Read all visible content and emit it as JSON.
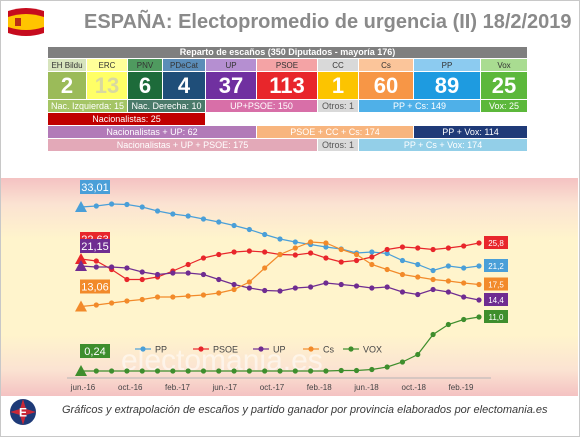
{
  "header": {
    "title": "ESPAÑA: Electopromedio de urgencia (II) 18/2/2019"
  },
  "seat_table": {
    "header": "Reparto de escaños (350 Diputados - mayoría 176)",
    "parties": [
      {
        "name": "EH Bildu",
        "seats": "2",
        "bg": "#9bbb59",
        "name_bg": "#d7e4bd",
        "seat_color": "#ffffff"
      },
      {
        "name": "ERC",
        "seats": "13",
        "bg": "#ffff66",
        "name_bg": "#ffff99",
        "seat_color": "#d9d9a0"
      },
      {
        "name": "PNV",
        "seats": "6",
        "bg": "#1d6b3a",
        "name_bg": "#4f9a5f",
        "seat_color": "#ffffff"
      },
      {
        "name": "PDeCat",
        "seats": "4",
        "bg": "#1f4e79",
        "name_bg": "#5b8db8",
        "seat_color": "#ffffff"
      },
      {
        "name": "UP",
        "seats": "37",
        "bg": "#7030a0",
        "name_bg": "#b58fd1",
        "seat_color": "#ffffff"
      },
      {
        "name": "PSOE",
        "seats": "113",
        "bg": "#e8262b",
        "name_bg": "#f4a3a5",
        "seat_color": "#ffffff"
      },
      {
        "name": "CC",
        "seats": "1",
        "bg": "#fcc400",
        "name_bg": "#d9d9d9",
        "seat_color": "#ffffff"
      },
      {
        "name": "Cs",
        "seats": "60",
        "bg": "#f79646",
        "name_bg": "#fbc59a",
        "seat_color": "#ffffff"
      },
      {
        "name": "PP",
        "seats": "89",
        "bg": "#1e9be0",
        "name_bg": "#8ccbf0",
        "seat_color": "#ffffff"
      },
      {
        "name": "Vox",
        "seats": "25",
        "bg": "#5cb83b",
        "name_bg": "#a9dc91",
        "seat_color": "#ffffff"
      }
    ],
    "blocs": {
      "nac_izquierda": "Nac. Izquierda: 15",
      "nac_derecha": "Nac. Derecha: 10",
      "up_psoe": "UP+PSOE: 150",
      "otros_1": "Otros: 1",
      "pp_cs": "PP + Cs: 149",
      "vox": "Vox: 25",
      "nacionalistas": "Nacionalistas: 25",
      "nac_up": "Nacionalistas + UP: 62",
      "psoe_cc_cs": "PSOE + CC + Cs: 174",
      "pp_vox": "PP + Vox: 114",
      "nac_up_psoe": "Nacionalistas + UP + PSOE: 175",
      "otros_2": "Otros: 1",
      "pp_cs_vox": "PP + Cs + Vox: 174"
    }
  },
  "chart_data": {
    "type": "line",
    "x_tick_labels": [
      "jun.-16",
      "oct.-16",
      "feb.-17",
      "jun.-17",
      "oct.-17",
      "feb.-18",
      "jun.-18",
      "oct.-18",
      "feb.-19"
    ],
    "ylim": [
      0,
      36
    ],
    "series": [
      {
        "name": "PP",
        "color": "#4a9fd8",
        "start_label": "33,01",
        "end_label": "21,2",
        "values": [
          33.0,
          33.2,
          33.6,
          33.5,
          33.0,
          32.2,
          31.6,
          31.2,
          30.6,
          30.0,
          29.3,
          28.5,
          27.5,
          26.6,
          26.0,
          25.5,
          25.0,
          24.6,
          23.8,
          24.0,
          23.7,
          22.3,
          21.5,
          20.3,
          21.2,
          20.8,
          21.2
        ]
      },
      {
        "name": "PSOE",
        "color": "#e8262b",
        "start_label": "22,63",
        "end_label": "25,8",
        "values": [
          22.6,
          22.2,
          20.5,
          18.5,
          18.5,
          19.0,
          20.2,
          21.5,
          22.8,
          23.5,
          24.0,
          24.2,
          24.0,
          23.5,
          23.4,
          23.8,
          22.8,
          22.0,
          22.3,
          23.0,
          24.5,
          25.0,
          24.8,
          24.5,
          24.8,
          25.2,
          25.8
        ]
      },
      {
        "name": "UP",
        "color": "#6f2c91",
        "start_label": "21,15",
        "end_label": "14,4",
        "values": [
          21.2,
          21.0,
          21.0,
          20.8,
          20.0,
          19.5,
          19.8,
          19.8,
          19.5,
          18.5,
          17.5,
          16.8,
          16.3,
          16.2,
          16.8,
          17.0,
          17.8,
          17.5,
          17.2,
          16.8,
          17.0,
          16.0,
          15.5,
          16.5,
          16.0,
          15.0,
          14.4
        ]
      },
      {
        "name": "Cs",
        "color": "#f28a2a",
        "start_label": "13,06",
        "end_label": "17,5",
        "values": [
          13.1,
          13.4,
          13.8,
          14.2,
          14.5,
          15.0,
          15.0,
          15.2,
          15.4,
          15.8,
          16.5,
          18.0,
          20.8,
          23.5,
          24.8,
          26.0,
          25.8,
          24.5,
          23.5,
          21.5,
          20.5,
          19.5,
          19.0,
          18.5,
          18.2,
          17.8,
          17.5
        ]
      },
      {
        "name": "VOX",
        "color": "#3e8e2d",
        "start_label": "0,24",
        "end_label": "11,0",
        "values": [
          0.2,
          0.2,
          0.2,
          0.2,
          0.2,
          0.2,
          0.2,
          0.2,
          0.2,
          0.2,
          0.2,
          0.2,
          0.2,
          0.2,
          0.2,
          0.2,
          0.2,
          0.3,
          0.3,
          0.5,
          1.0,
          2.0,
          3.5,
          7.5,
          9.5,
          10.5,
          11.0
        ]
      }
    ],
    "legend_position": "bottom",
    "watermark": "electomania.es",
    "grid": false
  },
  "footer": {
    "text": "Gráficos y extrapolación de escaños y partido ganador por provincia elaborados por electomania.es"
  }
}
